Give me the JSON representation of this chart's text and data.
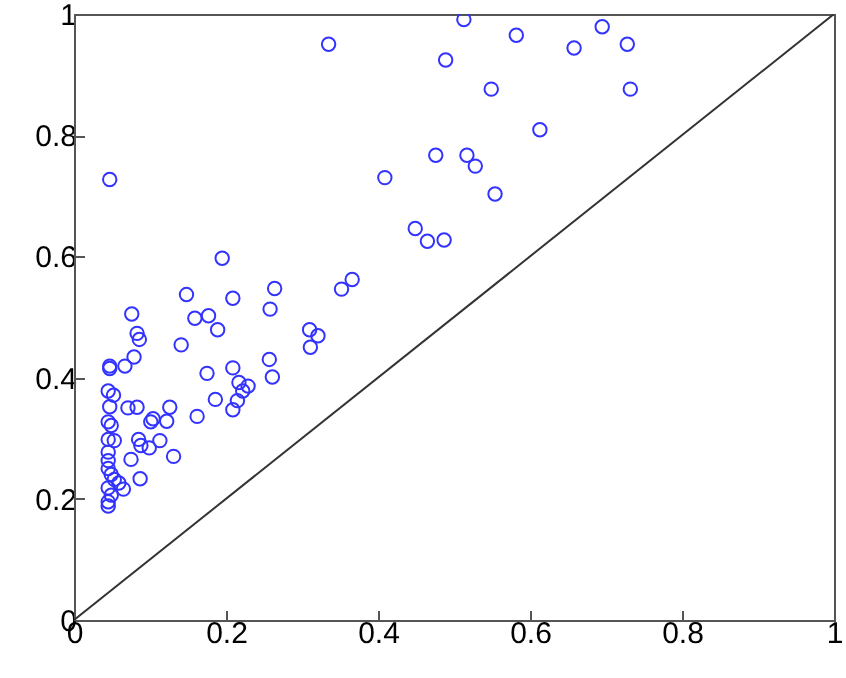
{
  "chart_data": {
    "type": "scatter",
    "xlim": [
      0,
      1
    ],
    "ylim": [
      0,
      1
    ],
    "xticks": [
      0,
      0.2,
      0.4,
      0.6,
      0.8,
      1
    ],
    "yticks": [
      0,
      0.2,
      0.4,
      0.6,
      0.8,
      1
    ],
    "grid": false,
    "marker": "circle",
    "series": [
      {
        "color": "#3333ff",
        "x": [
          0.335,
          0.489,
          0.047,
          0.409,
          0.476,
          0.449,
          0.465,
          0.487,
          0.195,
          0.148,
          0.209,
          0.264,
          0.258,
          0.352,
          0.366,
          0.076,
          0.159,
          0.177,
          0.513,
          0.582,
          0.695,
          0.658,
          0.728,
          0.549,
          0.732,
          0.613,
          0.517,
          0.528,
          0.554,
          0.189,
          0.083,
          0.086,
          0.141,
          0.31,
          0.321,
          0.311,
          0.079,
          0.067,
          0.047,
          0.047,
          0.257,
          0.175,
          0.209,
          0.261,
          0.217,
          0.229,
          0.222,
          0.215,
          0.209,
          0.186,
          0.126,
          0.083,
          0.071,
          0.045,
          0.052,
          0.047,
          0.162,
          0.104,
          0.101,
          0.122,
          0.045,
          0.049,
          0.045,
          0.053,
          0.085,
          0.088,
          0.099,
          0.113,
          0.131,
          0.075,
          0.045,
          0.045,
          0.045,
          0.049,
          0.053,
          0.059,
          0.065,
          0.045,
          0.049,
          0.045,
          0.045,
          0.087
        ],
        "values": [
          0.95,
          0.924,
          0.727,
          0.73,
          0.767,
          0.646,
          0.625,
          0.627,
          0.597,
          0.537,
          0.531,
          0.547,
          0.513,
          0.546,
          0.562,
          0.505,
          0.498,
          0.502,
          0.991,
          0.965,
          0.979,
          0.944,
          0.95,
          0.876,
          0.876,
          0.809,
          0.767,
          0.749,
          0.703,
          0.479,
          0.473,
          0.463,
          0.454,
          0.479,
          0.469,
          0.45,
          0.434,
          0.419,
          0.415,
          0.419,
          0.43,
          0.407,
          0.416,
          0.401,
          0.392,
          0.386,
          0.378,
          0.362,
          0.347,
          0.364,
          0.351,
          0.351,
          0.35,
          0.378,
          0.371,
          0.352,
          0.336,
          0.332,
          0.327,
          0.328,
          0.327,
          0.321,
          0.298,
          0.296,
          0.298,
          0.288,
          0.284,
          0.296,
          0.27,
          0.265,
          0.277,
          0.263,
          0.25,
          0.24,
          0.232,
          0.226,
          0.216,
          0.218,
          0.206,
          0.195,
          0.188,
          0.233
        ]
      },
      {
        "type": "line",
        "color": "#333333",
        "marker": "none",
        "x": [
          0,
          1
        ],
        "values": [
          0,
          1
        ]
      }
    ]
  }
}
